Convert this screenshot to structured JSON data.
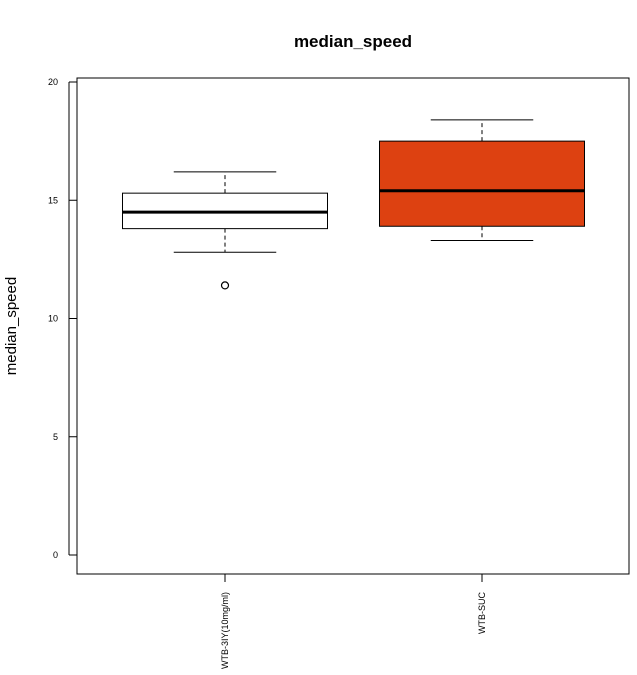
{
  "chart_data": {
    "type": "boxplot",
    "title": "median_speed",
    "xlabel": "",
    "ylabel": "median_speed",
    "ylim": [
      0,
      20
    ],
    "yticks": [
      0,
      5,
      10,
      15,
      20
    ],
    "grid": false,
    "legend": "none",
    "categories": [
      "WTB-3IY(10mg/ml)",
      "WTB-SUC"
    ],
    "boxes": [
      {
        "category": "WTB-3IY(10mg/ml)",
        "whisker_low": 12.8,
        "q1": 13.8,
        "median": 14.5,
        "q3": 15.3,
        "whisker_high": 16.2,
        "outliers": [
          11.4
        ],
        "fill": "#ffffff"
      },
      {
        "category": "WTB-SUC",
        "whisker_low": 13.3,
        "q1": 13.9,
        "median": 15.4,
        "q3": 17.5,
        "whisker_high": 18.4,
        "outliers": [],
        "fill": "#dd4111"
      }
    ]
  }
}
